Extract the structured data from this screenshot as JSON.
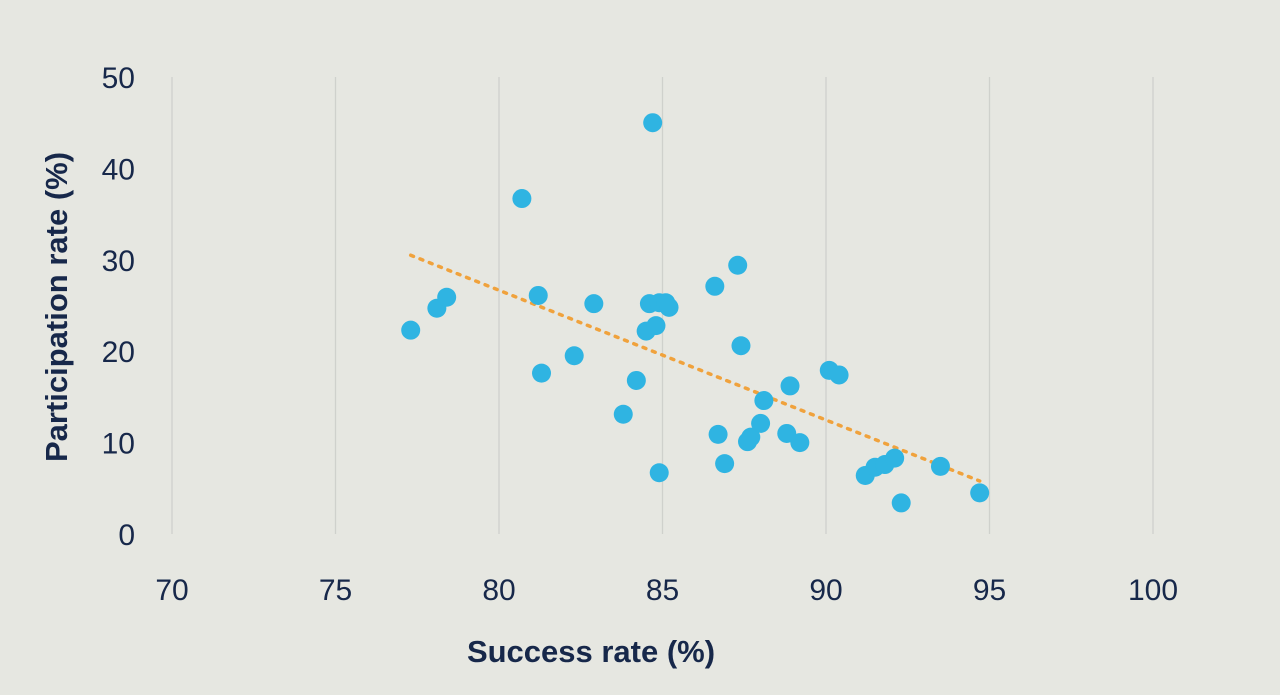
{
  "chart_data": {
    "type": "scatter",
    "xlabel": "Success rate (%)",
    "ylabel": "Participation rate (%)",
    "xlim": [
      70,
      100
    ],
    "ylim": [
      0,
      50
    ],
    "x_ticks": [
      "70",
      "75",
      "80",
      "85",
      "90",
      "95",
      "100"
    ],
    "y_ticks": [
      "0",
      "10",
      "20",
      "30",
      "40",
      "50"
    ],
    "grid": "vertical",
    "colors": {
      "points": "#2fb4e2",
      "trendline": "#f0a23c",
      "text": "#17284a",
      "grid": "#cfd1cc"
    },
    "trendline": {
      "style": "dotted",
      "x": [
        77.3,
        94.7
      ],
      "y": [
        30.5,
        5.8
      ]
    },
    "points": [
      {
        "x": 77.3,
        "y": 22.3
      },
      {
        "x": 78.1,
        "y": 24.7
      },
      {
        "x": 78.4,
        "y": 25.9
      },
      {
        "x": 80.7,
        "y": 36.7
      },
      {
        "x": 81.2,
        "y": 26.1
      },
      {
        "x": 81.3,
        "y": 17.6
      },
      {
        "x": 82.3,
        "y": 19.5
      },
      {
        "x": 82.9,
        "y": 25.2
      },
      {
        "x": 83.8,
        "y": 13.1
      },
      {
        "x": 84.2,
        "y": 16.8
      },
      {
        "x": 84.5,
        "y": 22.2
      },
      {
        "x": 84.6,
        "y": 25.2
      },
      {
        "x": 84.7,
        "y": 45.0
      },
      {
        "x": 84.8,
        "y": 22.8
      },
      {
        "x": 84.9,
        "y": 25.3
      },
      {
        "x": 84.9,
        "y": 6.7
      },
      {
        "x": 85.1,
        "y": 25.3
      },
      {
        "x": 85.2,
        "y": 24.8
      },
      {
        "x": 86.6,
        "y": 27.1
      },
      {
        "x": 86.7,
        "y": 10.9
      },
      {
        "x": 86.9,
        "y": 7.7
      },
      {
        "x": 87.3,
        "y": 29.4
      },
      {
        "x": 87.4,
        "y": 20.6
      },
      {
        "x": 87.6,
        "y": 10.1
      },
      {
        "x": 87.7,
        "y": 10.6
      },
      {
        "x": 88.0,
        "y": 12.1
      },
      {
        "x": 88.1,
        "y": 14.6
      },
      {
        "x": 88.8,
        "y": 11.0
      },
      {
        "x": 88.9,
        "y": 16.2
      },
      {
        "x": 89.2,
        "y": 10.0
      },
      {
        "x": 90.1,
        "y": 17.9
      },
      {
        "x": 90.4,
        "y": 17.4
      },
      {
        "x": 91.2,
        "y": 6.4
      },
      {
        "x": 91.5,
        "y": 7.3
      },
      {
        "x": 91.8,
        "y": 7.6
      },
      {
        "x": 92.1,
        "y": 8.3
      },
      {
        "x": 92.3,
        "y": 3.4
      },
      {
        "x": 93.5,
        "y": 7.4
      },
      {
        "x": 94.7,
        "y": 4.5
      }
    ]
  }
}
